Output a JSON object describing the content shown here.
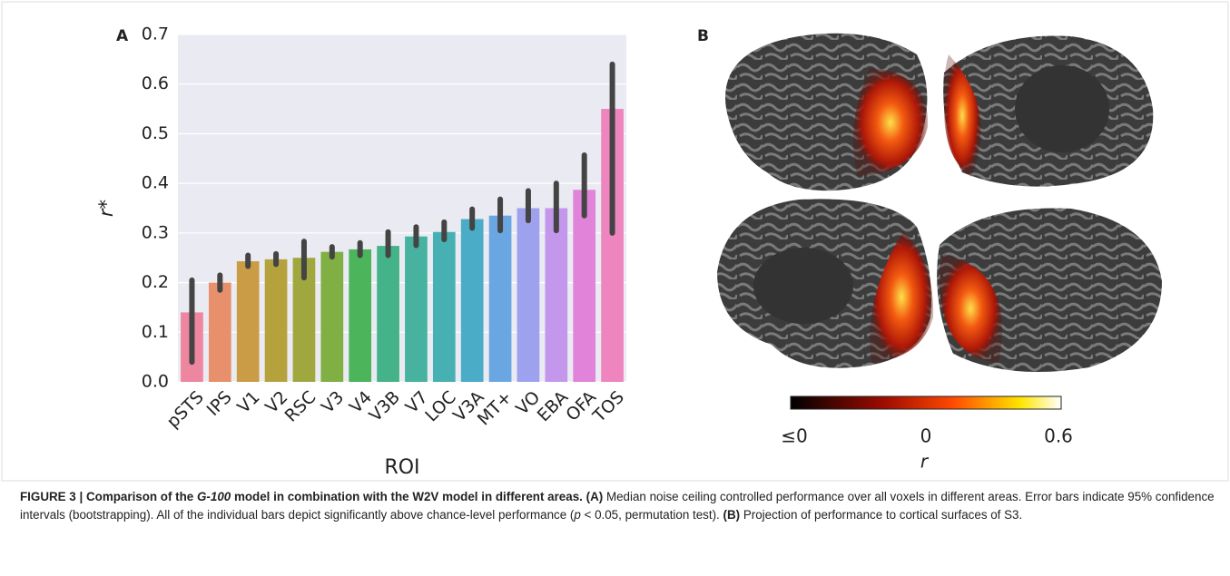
{
  "chart_data": {
    "type": "bar",
    "panel": "A",
    "categories": [
      "pSTS",
      "IPS",
      "V1",
      "V2",
      "RSC",
      "V3",
      "V4",
      "V3B",
      "V7",
      "LOC",
      "V3A",
      "MT+",
      "VO",
      "EBA",
      "OFA",
      "TOS"
    ],
    "values": [
      0.14,
      0.2,
      0.243,
      0.247,
      0.25,
      0.262,
      0.267,
      0.274,
      0.293,
      0.302,
      0.328,
      0.335,
      0.35,
      0.35,
      0.387,
      0.55
    ],
    "ci_low": [
      0.04,
      0.185,
      0.233,
      0.237,
      0.21,
      0.252,
      0.255,
      0.255,
      0.275,
      0.287,
      0.31,
      0.305,
      0.325,
      0.305,
      0.335,
      0.3
    ],
    "ci_high": [
      0.205,
      0.215,
      0.255,
      0.258,
      0.283,
      0.272,
      0.28,
      0.302,
      0.312,
      0.322,
      0.348,
      0.368,
      0.385,
      0.4,
      0.457,
      0.64
    ],
    "colors": [
      "#ee86a0",
      "#e8906c",
      "#c99c45",
      "#b5a23d",
      "#a0a73f",
      "#80af43",
      "#4cb45a",
      "#45b38a",
      "#46b29f",
      "#47b0b2",
      "#4aacc6",
      "#6aa6e2",
      "#9ea2ee",
      "#c398ec",
      "#e283da",
      "#ef85bf"
    ],
    "ylim": [
      0,
      0.7
    ],
    "yticks": [
      {
        "value": 0,
        "label": "0.0"
      },
      0.1,
      0.2,
      0.3,
      0.4,
      0.5,
      0.6,
      0.7
    ],
    "y_label": "r*",
    "x_label": "ROI",
    "grid": true
  },
  "panel_b": {
    "label": "B",
    "colorbar": {
      "labels": [
        "≤0",
        "0",
        "0.6"
      ],
      "title": "r"
    }
  },
  "caption": {
    "label": "FIGURE 3 |",
    "title_1": "Comparison of the",
    "title_2": "G-100",
    "title_3": "model in combination with the W2V model in different areas.",
    "a_tag": "(A)",
    "a_text_1": "Median noise ceiling controlled performance over all voxels in different areas. Error bars indicate 95% confidence intervals (bootstrapping). All of the individual bars depict significantly above chance-level performance (",
    "a_text_p": "p",
    "a_text_2": "< 0.05, permutation test).",
    "b_tag": "(B)",
    "b_text": "Projection of performance to cortical surfaces of S3."
  }
}
